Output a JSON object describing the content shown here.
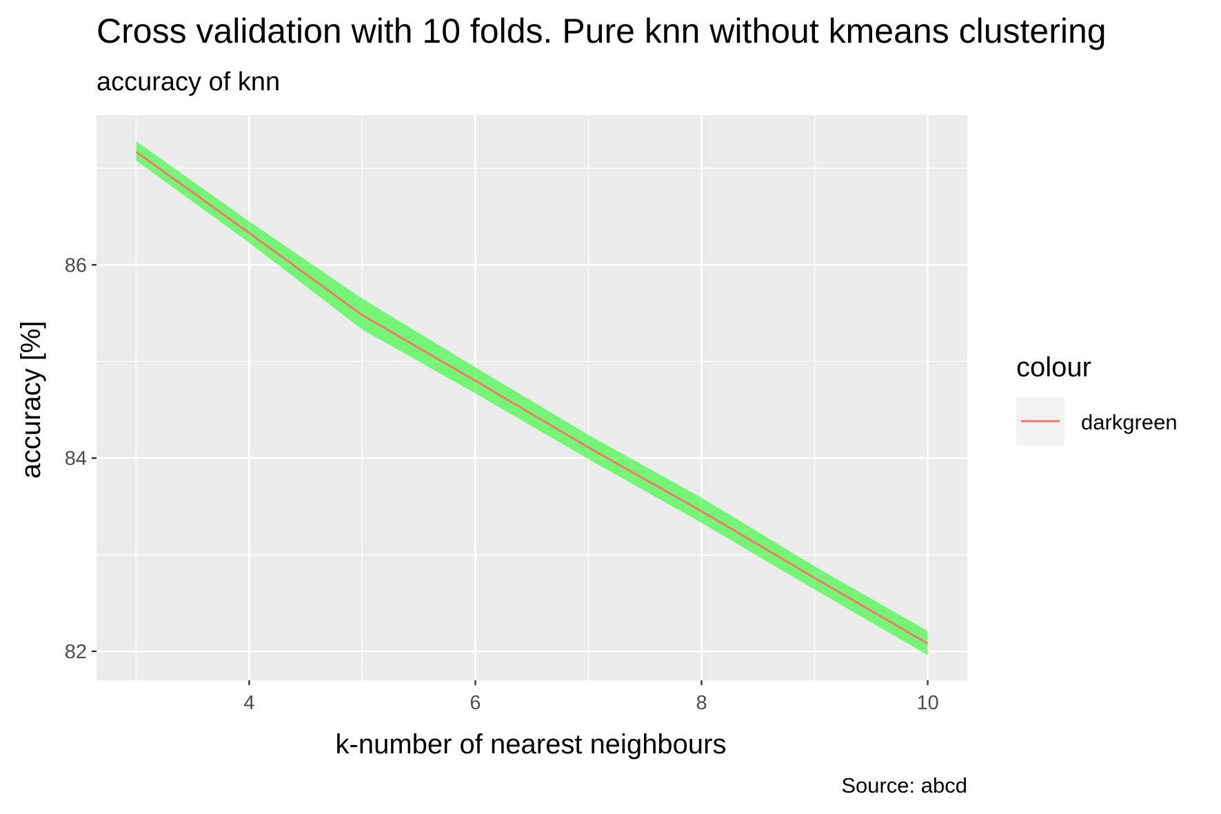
{
  "chart_data": {
    "type": "line",
    "title": "Cross validation with 10 folds. Pure knn without kmeans clustering",
    "subtitle": "accuracy of knn",
    "xlabel": "k-number of nearest neighbours",
    "ylabel": "accuracy [%]",
    "caption": "Source: abcd",
    "x": [
      3,
      4,
      5,
      6,
      7,
      8,
      9,
      10
    ],
    "series": [
      {
        "name": "darkgreen",
        "values": [
          87.17,
          86.33,
          85.48,
          84.8,
          84.11,
          83.45,
          82.76,
          82.08
        ],
        "lower": [
          87.08,
          86.23,
          85.33,
          84.67,
          83.99,
          83.33,
          82.64,
          81.96
        ],
        "upper": [
          87.28,
          86.45,
          85.65,
          84.94,
          84.24,
          83.59,
          82.88,
          82.21
        ],
        "line_color": "#F8766D",
        "band_color": "#00FF00"
      }
    ],
    "xlim": [
      2.65,
      10.35
    ],
    "ylim": [
      81.7,
      87.55
    ],
    "xticks": [
      4,
      6,
      8,
      10
    ],
    "yticks": [
      82,
      84,
      86
    ],
    "grid": true,
    "legend": {
      "title": "colour",
      "position": "right",
      "entries": [
        "darkgreen"
      ]
    },
    "colors": {
      "panel_background": "#EBEBEB",
      "grid": "#FFFFFF",
      "legend_key_background": "#F2F2F2"
    }
  }
}
